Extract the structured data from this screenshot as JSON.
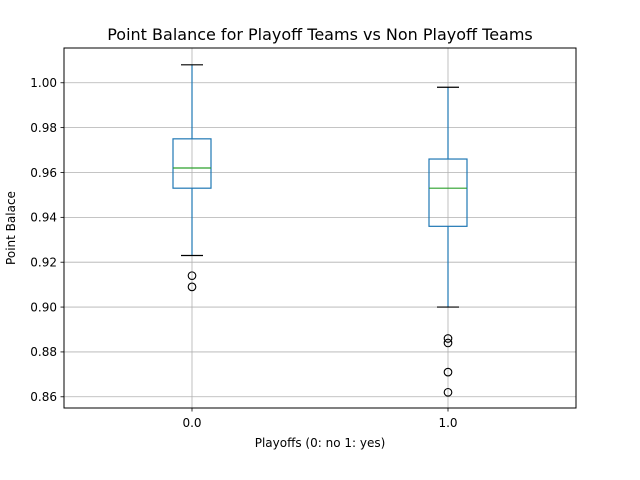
{
  "chart_data": {
    "type": "boxplot",
    "title": "Point Balance for Playoff Teams vs Non Playoff Teams",
    "xlabel": "Playoffs (0: no 1: yes)",
    "ylabel": "Point Balace",
    "ylim": [
      0.855,
      1.0155
    ],
    "yticks": [
      0.86,
      0.88,
      0.9,
      0.92,
      0.94,
      0.96,
      0.98,
      1.0
    ],
    "ytick_labels": [
      "0.86",
      "0.88",
      "0.90",
      "0.92",
      "0.94",
      "0.96",
      "0.98",
      "1.00"
    ],
    "grid": true,
    "categories": [
      "0.0",
      "1.0"
    ],
    "boxes": [
      {
        "category": "0.0",
        "whisker_low": 0.923,
        "q1": 0.953,
        "median": 0.962,
        "q3": 0.975,
        "whisker_high": 1.008,
        "outliers": [
          0.914,
          0.909
        ]
      },
      {
        "category": "1.0",
        "whisker_low": 0.9,
        "q1": 0.936,
        "median": 0.953,
        "q3": 0.966,
        "whisker_high": 0.998,
        "outliers": [
          0.886,
          0.884,
          0.871,
          0.862
        ]
      }
    ],
    "colors": {
      "box": "#1f77b4",
      "median": "#2ca02c",
      "flier": "#000000",
      "grid": "#b0b0b0"
    }
  }
}
